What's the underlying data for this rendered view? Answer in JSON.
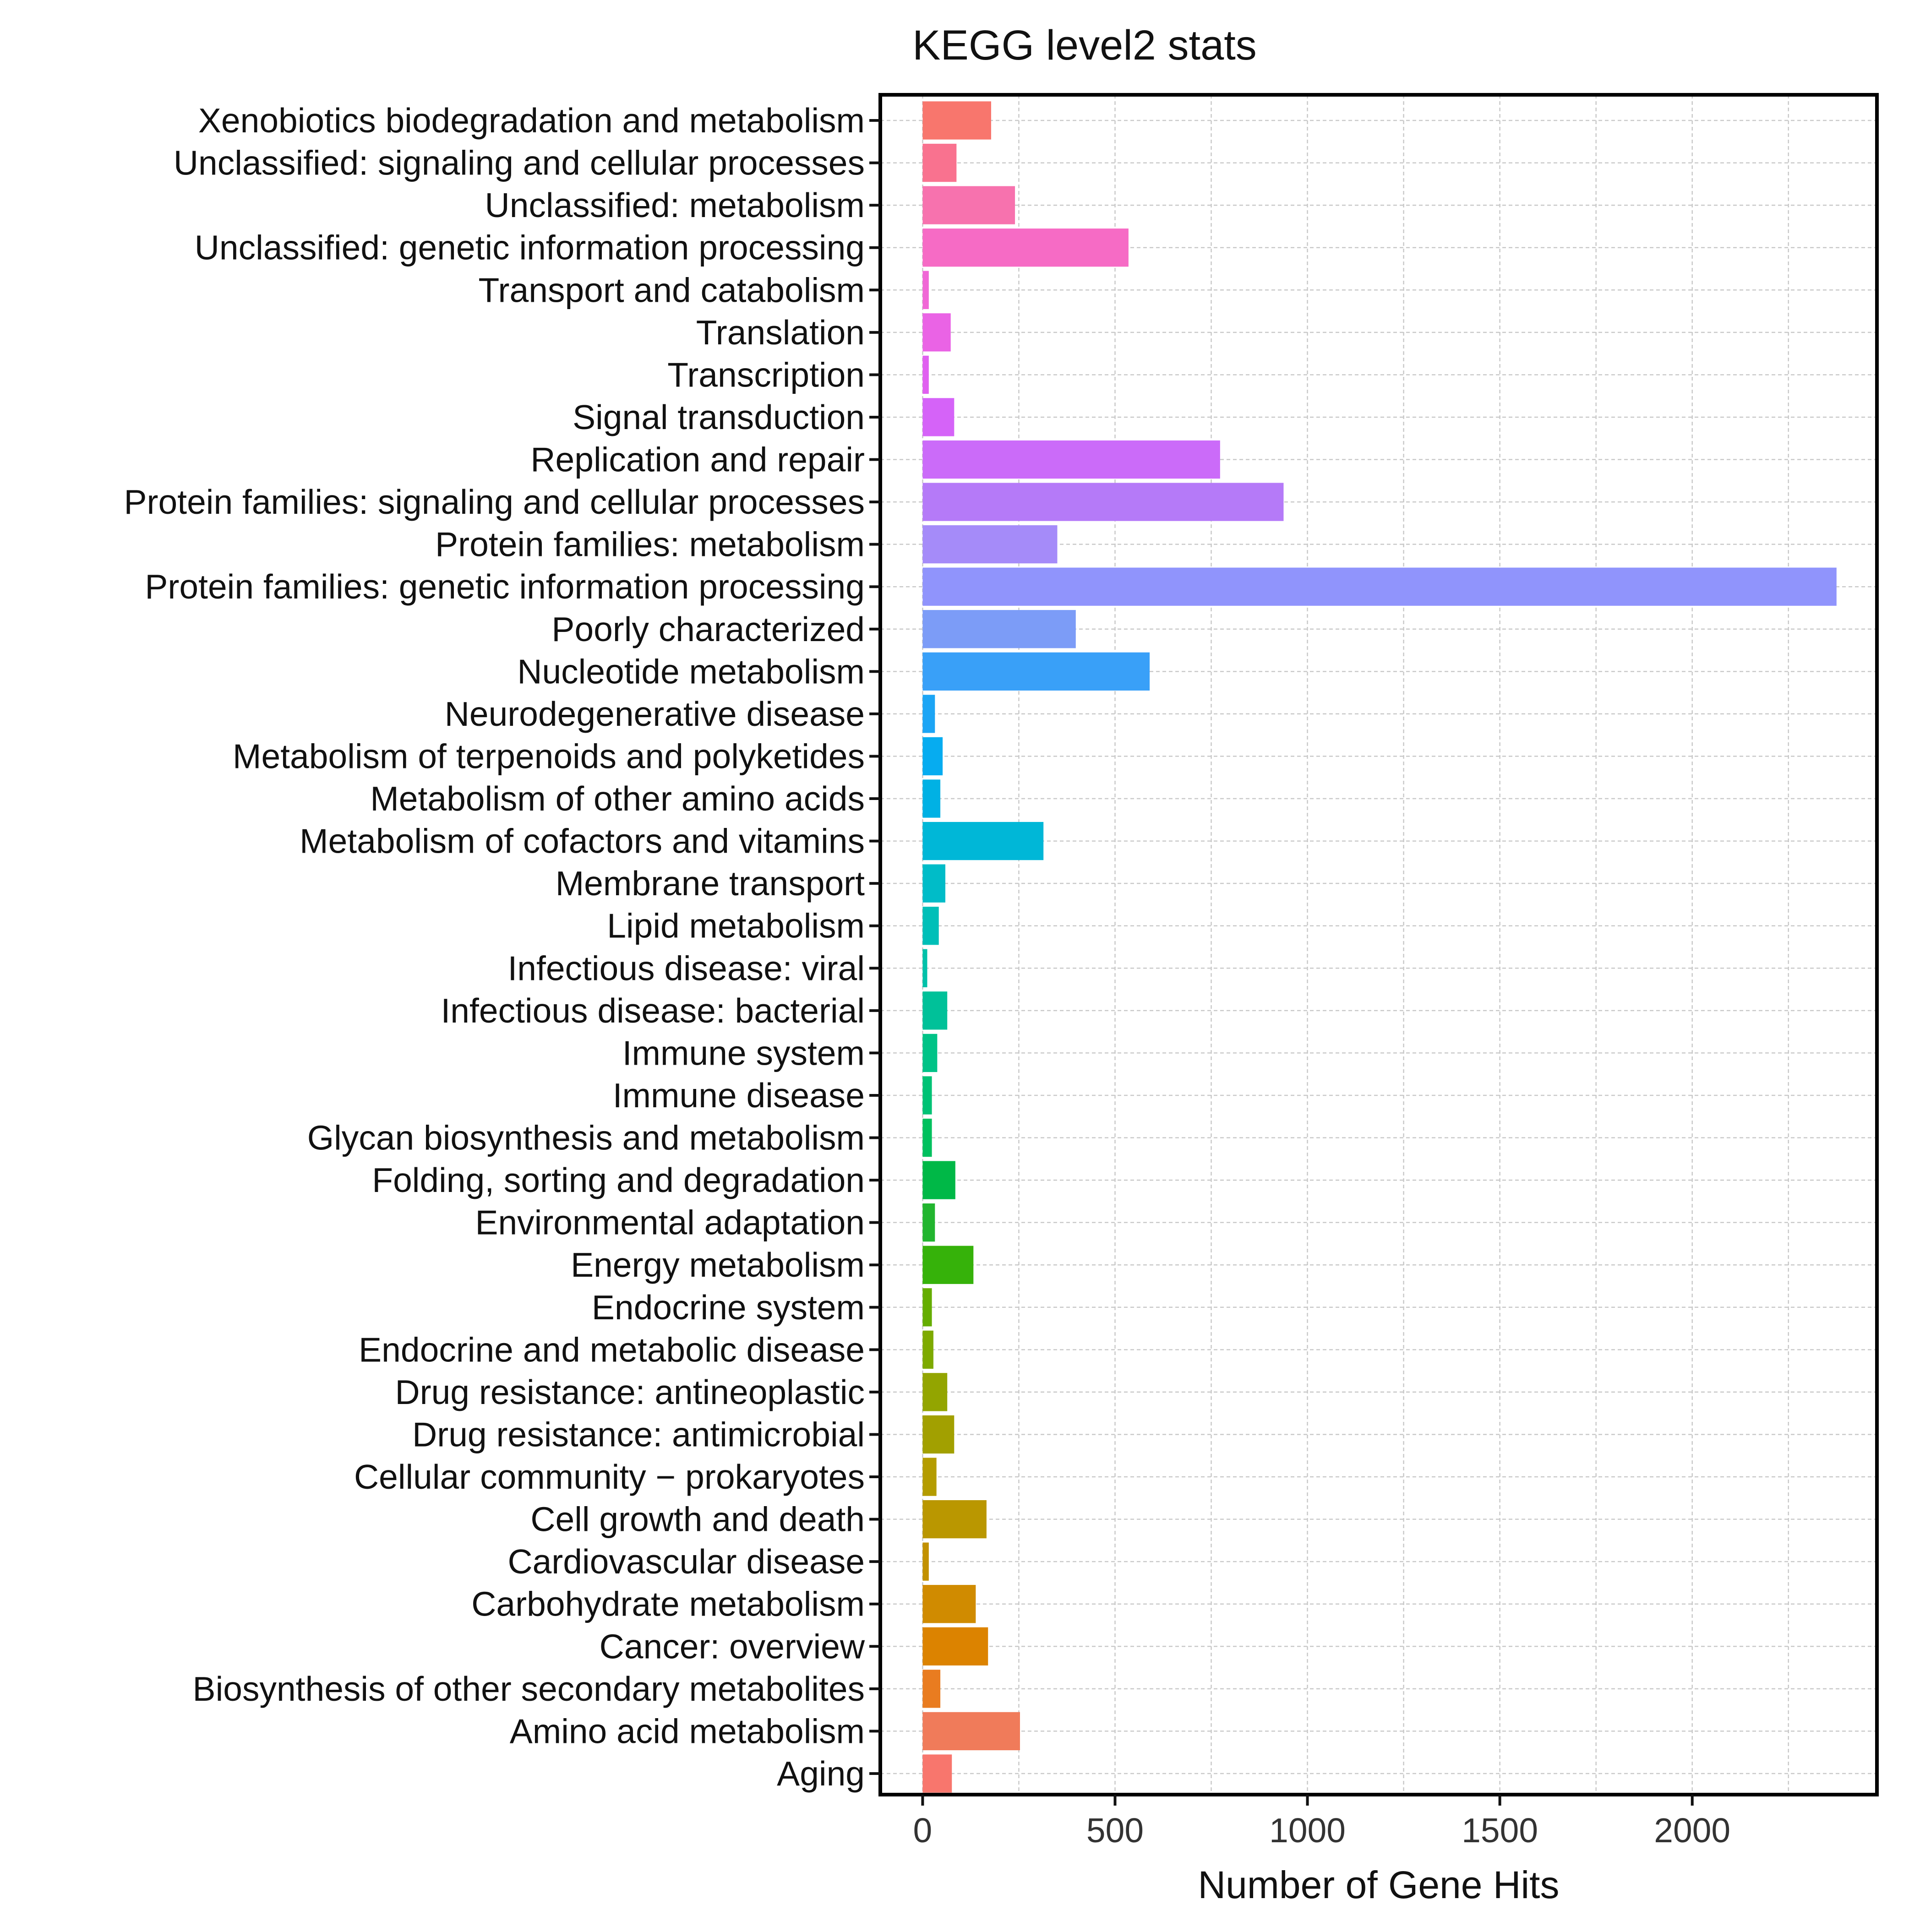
{
  "chart_data": {
    "type": "bar",
    "orientation": "horizontal",
    "title": "KEGG level2 stats",
    "xlabel": "Number of Gene Hits",
    "ylabel": "",
    "xlim": [
      -110,
      2480
    ],
    "xticks": [
      0,
      500,
      1000,
      1500,
      2000
    ],
    "xtick_labels": [
      "0",
      "500",
      "1000",
      "1500",
      "2000"
    ],
    "grid": true,
    "categories": [
      "Xenobiotics biodegradation and metabolism",
      "Unclassified: signaling and cellular processes",
      "Unclassified: metabolism",
      "Unclassified: genetic information processing",
      "Transport and catabolism",
      "Translation",
      "Transcription",
      "Signal transduction",
      "Replication and repair",
      "Protein families: signaling and cellular processes",
      "Protein families: metabolism",
      "Protein families: genetic information processing",
      "Poorly characterized",
      "Nucleotide metabolism",
      "Neurodegenerative disease",
      "Metabolism of terpenoids and polyketides",
      "Metabolism of other amino acids",
      "Metabolism of cofactors and vitamins",
      "Membrane transport",
      "Lipid metabolism",
      "Infectious disease: viral",
      "Infectious disease: bacterial",
      "Immune system",
      "Immune disease",
      "Glycan biosynthesis and metabolism",
      "Folding, sorting and degradation",
      "Environmental adaptation",
      "Energy metabolism",
      "Endocrine system",
      "Endocrine and metabolic disease",
      "Drug resistance: antineoplastic",
      "Drug resistance: antimicrobial",
      "Cellular community − prokaryotes",
      "Cell growth and death",
      "Cardiovascular disease",
      "Carbohydrate metabolism",
      "Cancer: overview",
      "Biosynthesis of other secondary metabolites",
      "Amino acid metabolism",
      "Aging"
    ],
    "values": [
      178,
      88,
      240,
      535,
      16,
      73,
      16,
      82,
      773,
      938,
      350,
      2375,
      398,
      590,
      32,
      52,
      46,
      314,
      59,
      42,
      12,
      64,
      38,
      24,
      24,
      85,
      32,
      132,
      24,
      28,
      64,
      82,
      36,
      166,
      16,
      138,
      170,
      46,
      253,
      76
    ],
    "colors": [
      "#F8766D",
      "#F9728F",
      "#F772AE",
      "#F66BC5",
      "#F067D6",
      "#EA63E5",
      "#E060F0",
      "#D563F8",
      "#CB6BF9",
      "#B57AF8",
      "#A58BF9",
      "#9094FC",
      "#7C9CF7",
      "#39A0F8",
      "#1CA5F5",
      "#06ACF0",
      "#00B1E4",
      "#00B7D7",
      "#00BCC8",
      "#00BFB8",
      "#00C1A9",
      "#00C199",
      "#00C387",
      "#00C275",
      "#00C05E",
      "#00B847",
      "#22B52F",
      "#36B20A",
      "#65AD00",
      "#7EAA00",
      "#93A500",
      "#A2A000",
      "#B49C00",
      "#BA9700",
      "#C29100",
      "#D08B00",
      "#DC8300",
      "#E97C20",
      "#F07B5A",
      "#F8766D"
    ]
  }
}
